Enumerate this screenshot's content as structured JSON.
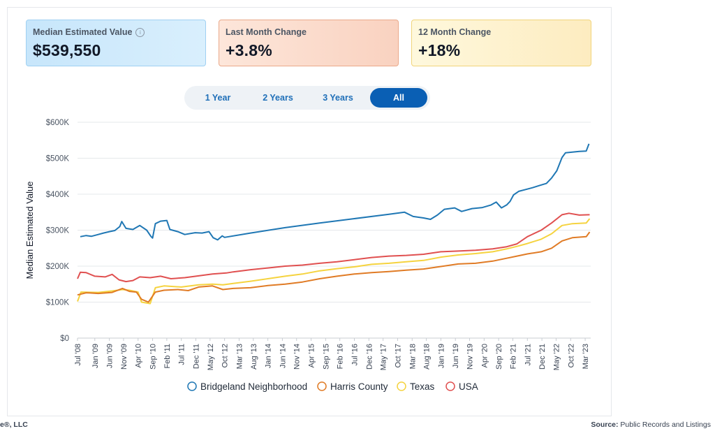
{
  "cards": [
    {
      "label": "Median Estimated Value",
      "value": "$539,550",
      "info_icon": "info-icon"
    },
    {
      "label": "Last Month Change",
      "value": "+3.8%"
    },
    {
      "label": "12 Month Change",
      "value": "+18%"
    }
  ],
  "tabs": [
    {
      "label": "1 Year",
      "active": false
    },
    {
      "label": "2 Years",
      "active": false
    },
    {
      "label": "3 Years",
      "active": false
    },
    {
      "label": "All",
      "active": true
    }
  ],
  "footer": {
    "left_text": "e®, LLC",
    "source_label": "Source:",
    "source_value": "Public Records and Listings"
  },
  "chart_data": {
    "type": "line",
    "title": "",
    "xlabel": "",
    "ylabel": "Median Estimated Value",
    "ylim": [
      0,
      600000
    ],
    "yticks": [
      0,
      100000,
      200000,
      300000,
      400000,
      500000,
      600000
    ],
    "ytick_labels": [
      "$0",
      "$100K",
      "$200K",
      "$300K",
      "$400K",
      "$500K",
      "$600K"
    ],
    "xlim": [
      2008.5,
      2023.33
    ],
    "xticks": [
      {
        "label": "Jul '08",
        "t": 2008.5
      },
      {
        "label": "Jan '09",
        "t": 2009.0
      },
      {
        "label": "Jun '09",
        "t": 2009.42
      },
      {
        "label": "Nov '09",
        "t": 2009.83
      },
      {
        "label": "Apr '10",
        "t": 2010.25
      },
      {
        "label": "Sep '10",
        "t": 2010.67
      },
      {
        "label": "Feb '11",
        "t": 2011.08
      },
      {
        "label": "Jul '11",
        "t": 2011.5
      },
      {
        "label": "Dec '11",
        "t": 2011.92
      },
      {
        "label": "May '12",
        "t": 2012.33
      },
      {
        "label": "Oct '12",
        "t": 2012.75
      },
      {
        "label": "Mar '13",
        "t": 2013.17
      },
      {
        "label": "Aug '13",
        "t": 2013.58
      },
      {
        "label": "Jan '14",
        "t": 2014.0
      },
      {
        "label": "Jun '14",
        "t": 2014.42
      },
      {
        "label": "Nov '14",
        "t": 2014.83
      },
      {
        "label": "Apr '15",
        "t": 2015.25
      },
      {
        "label": "Sep '15",
        "t": 2015.67
      },
      {
        "label": "Feb '16",
        "t": 2016.08
      },
      {
        "label": "Jul '16",
        "t": 2016.5
      },
      {
        "label": "Dec '16",
        "t": 2016.92
      },
      {
        "label": "May '17",
        "t": 2017.33
      },
      {
        "label": "Oct '17",
        "t": 2017.75
      },
      {
        "label": "Mar '18",
        "t": 2018.17
      },
      {
        "label": "Aug '18",
        "t": 2018.58
      },
      {
        "label": "Jan '19",
        "t": 2019.0
      },
      {
        "label": "Jun '19",
        "t": 2019.42
      },
      {
        "label": "Nov '19",
        "t": 2019.83
      },
      {
        "label": "Apr '20",
        "t": 2020.25
      },
      {
        "label": "Sep '20",
        "t": 2020.67
      },
      {
        "label": "Feb '21",
        "t": 2021.08
      },
      {
        "label": "Jul '21",
        "t": 2021.5
      },
      {
        "label": "Dec '21",
        "t": 2021.92
      },
      {
        "label": "May '22",
        "t": 2022.33
      },
      {
        "label": "Oct '22",
        "t": 2022.75
      },
      {
        "label": "Mar '23",
        "t": 2023.17
      }
    ],
    "series": [
      {
        "name": "Bridgeland Neighborhood",
        "color": "#1f77b4",
        "points": [
          [
            2008.58,
            282000
          ],
          [
            2008.75,
            285000
          ],
          [
            2008.9,
            283000
          ],
          [
            2009.1,
            288000
          ],
          [
            2009.25,
            292000
          ],
          [
            2009.42,
            296000
          ],
          [
            2009.58,
            299000
          ],
          [
            2009.72,
            310000
          ],
          [
            2009.78,
            324000
          ],
          [
            2009.9,
            305000
          ],
          [
            2010.1,
            302000
          ],
          [
            2010.3,
            313000
          ],
          [
            2010.5,
            300000
          ],
          [
            2010.62,
            283000
          ],
          [
            2010.67,
            278000
          ],
          [
            2010.75,
            318000
          ],
          [
            2010.9,
            325000
          ],
          [
            2011.08,
            327000
          ],
          [
            2011.17,
            302000
          ],
          [
            2011.4,
            296000
          ],
          [
            2011.6,
            288000
          ],
          [
            2011.9,
            293000
          ],
          [
            2012.1,
            292000
          ],
          [
            2012.3,
            296000
          ],
          [
            2012.42,
            279000
          ],
          [
            2012.55,
            273000
          ],
          [
            2012.68,
            284000
          ],
          [
            2012.75,
            280000
          ],
          [
            2013.5,
            292000
          ],
          [
            2014.5,
            307000
          ],
          [
            2015.5,
            320000
          ],
          [
            2016.5,
            332000
          ],
          [
            2017.5,
            344000
          ],
          [
            2017.95,
            350000
          ],
          [
            2018.2,
            338000
          ],
          [
            2018.5,
            334000
          ],
          [
            2018.7,
            330000
          ],
          [
            2018.9,
            342000
          ],
          [
            2019.1,
            358000
          ],
          [
            2019.4,
            362000
          ],
          [
            2019.6,
            352000
          ],
          [
            2019.9,
            360000
          ],
          [
            2020.2,
            363000
          ],
          [
            2020.45,
            370000
          ],
          [
            2020.6,
            378000
          ],
          [
            2020.75,
            362000
          ],
          [
            2020.9,
            370000
          ],
          [
            2021.0,
            380000
          ],
          [
            2021.1,
            398000
          ],
          [
            2021.25,
            408000
          ],
          [
            2021.45,
            413000
          ],
          [
            2021.65,
            418000
          ],
          [
            2021.85,
            424000
          ],
          [
            2022.05,
            430000
          ],
          [
            2022.2,
            445000
          ],
          [
            2022.35,
            465000
          ],
          [
            2022.5,
            502000
          ],
          [
            2022.6,
            515000
          ],
          [
            2022.8,
            517000
          ],
          [
            2023.0,
            519000
          ],
          [
            2023.2,
            520000
          ],
          [
            2023.28,
            540000
          ]
        ]
      },
      {
        "name": "Harris County",
        "color": "#e07b25",
        "points": [
          [
            2008.5,
            120000
          ],
          [
            2008.75,
            126000
          ],
          [
            2009.1,
            124000
          ],
          [
            2009.5,
            127000
          ],
          [
            2009.8,
            138000
          ],
          [
            2010.0,
            130000
          ],
          [
            2010.2,
            128000
          ],
          [
            2010.35,
            108000
          ],
          [
            2010.55,
            100000
          ],
          [
            2010.75,
            128000
          ],
          [
            2011.0,
            133000
          ],
          [
            2011.4,
            135000
          ],
          [
            2011.7,
            132000
          ],
          [
            2012.0,
            142000
          ],
          [
            2012.4,
            145000
          ],
          [
            2012.7,
            135000
          ],
          [
            2013.0,
            138000
          ],
          [
            2013.5,
            140000
          ],
          [
            2014.0,
            146000
          ],
          [
            2014.5,
            150000
          ],
          [
            2015.0,
            156000
          ],
          [
            2015.5,
            165000
          ],
          [
            2016.0,
            172000
          ],
          [
            2016.5,
            178000
          ],
          [
            2017.0,
            182000
          ],
          [
            2017.5,
            185000
          ],
          [
            2018.0,
            189000
          ],
          [
            2018.5,
            192000
          ],
          [
            2019.0,
            199000
          ],
          [
            2019.5,
            206000
          ],
          [
            2020.0,
            208000
          ],
          [
            2020.5,
            214000
          ],
          [
            2020.9,
            222000
          ],
          [
            2021.2,
            228000
          ],
          [
            2021.5,
            234000
          ],
          [
            2021.9,
            240000
          ],
          [
            2022.2,
            250000
          ],
          [
            2022.5,
            270000
          ],
          [
            2022.8,
            279000
          ],
          [
            2023.2,
            282000
          ],
          [
            2023.3,
            295000
          ]
        ]
      },
      {
        "name": "Texas",
        "color": "#f5d33f",
        "points": [
          [
            2008.5,
            102000
          ],
          [
            2008.6,
            128000
          ],
          [
            2009.1,
            127000
          ],
          [
            2009.5,
            131000
          ],
          [
            2009.8,
            135000
          ],
          [
            2010.0,
            133000
          ],
          [
            2010.25,
            128000
          ],
          [
            2010.35,
            100000
          ],
          [
            2010.6,
            96000
          ],
          [
            2010.75,
            140000
          ],
          [
            2011.0,
            145000
          ],
          [
            2011.5,
            142000
          ],
          [
            2012.0,
            148000
          ],
          [
            2012.4,
            150000
          ],
          [
            2012.7,
            148000
          ],
          [
            2013.0,
            152000
          ],
          [
            2013.5,
            158000
          ],
          [
            2014.0,
            165000
          ],
          [
            2014.5,
            172000
          ],
          [
            2015.0,
            178000
          ],
          [
            2015.5,
            187000
          ],
          [
            2016.0,
            193000
          ],
          [
            2016.5,
            198000
          ],
          [
            2017.0,
            205000
          ],
          [
            2017.5,
            208000
          ],
          [
            2018.0,
            212000
          ],
          [
            2018.5,
            216000
          ],
          [
            2019.0,
            225000
          ],
          [
            2019.5,
            231000
          ],
          [
            2020.0,
            235000
          ],
          [
            2020.5,
            240000
          ],
          [
            2020.9,
            248000
          ],
          [
            2021.2,
            255000
          ],
          [
            2021.5,
            263000
          ],
          [
            2021.9,
            275000
          ],
          [
            2022.2,
            290000
          ],
          [
            2022.5,
            313000
          ],
          [
            2022.8,
            318000
          ],
          [
            2023.2,
            320000
          ],
          [
            2023.3,
            332000
          ]
        ]
      },
      {
        "name": "USA",
        "color": "#e05050",
        "points": [
          [
            2008.5,
            165000
          ],
          [
            2008.58,
            183000
          ],
          [
            2008.75,
            182000
          ],
          [
            2009.0,
            172000
          ],
          [
            2009.3,
            170000
          ],
          [
            2009.5,
            177000
          ],
          [
            2009.7,
            162000
          ],
          [
            2009.9,
            157000
          ],
          [
            2010.1,
            160000
          ],
          [
            2010.3,
            170000
          ],
          [
            2010.6,
            168000
          ],
          [
            2010.9,
            172000
          ],
          [
            2011.2,
            165000
          ],
          [
            2011.6,
            168000
          ],
          [
            2012.0,
            173000
          ],
          [
            2012.4,
            178000
          ],
          [
            2012.8,
            181000
          ],
          [
            2013.0,
            184000
          ],
          [
            2013.5,
            190000
          ],
          [
            2014.0,
            195000
          ],
          [
            2014.5,
            200000
          ],
          [
            2015.0,
            203000
          ],
          [
            2015.5,
            208000
          ],
          [
            2016.0,
            212000
          ],
          [
            2016.5,
            218000
          ],
          [
            2017.0,
            224000
          ],
          [
            2017.5,
            228000
          ],
          [
            2018.0,
            230000
          ],
          [
            2018.5,
            233000
          ],
          [
            2019.0,
            240000
          ],
          [
            2019.5,
            242000
          ],
          [
            2020.0,
            244000
          ],
          [
            2020.5,
            248000
          ],
          [
            2020.9,
            254000
          ],
          [
            2021.2,
            262000
          ],
          [
            2021.5,
            282000
          ],
          [
            2021.9,
            300000
          ],
          [
            2022.2,
            320000
          ],
          [
            2022.5,
            343000
          ],
          [
            2022.7,
            347000
          ],
          [
            2023.0,
            342000
          ],
          [
            2023.3,
            343000
          ]
        ]
      }
    ],
    "legend": "bottom"
  }
}
